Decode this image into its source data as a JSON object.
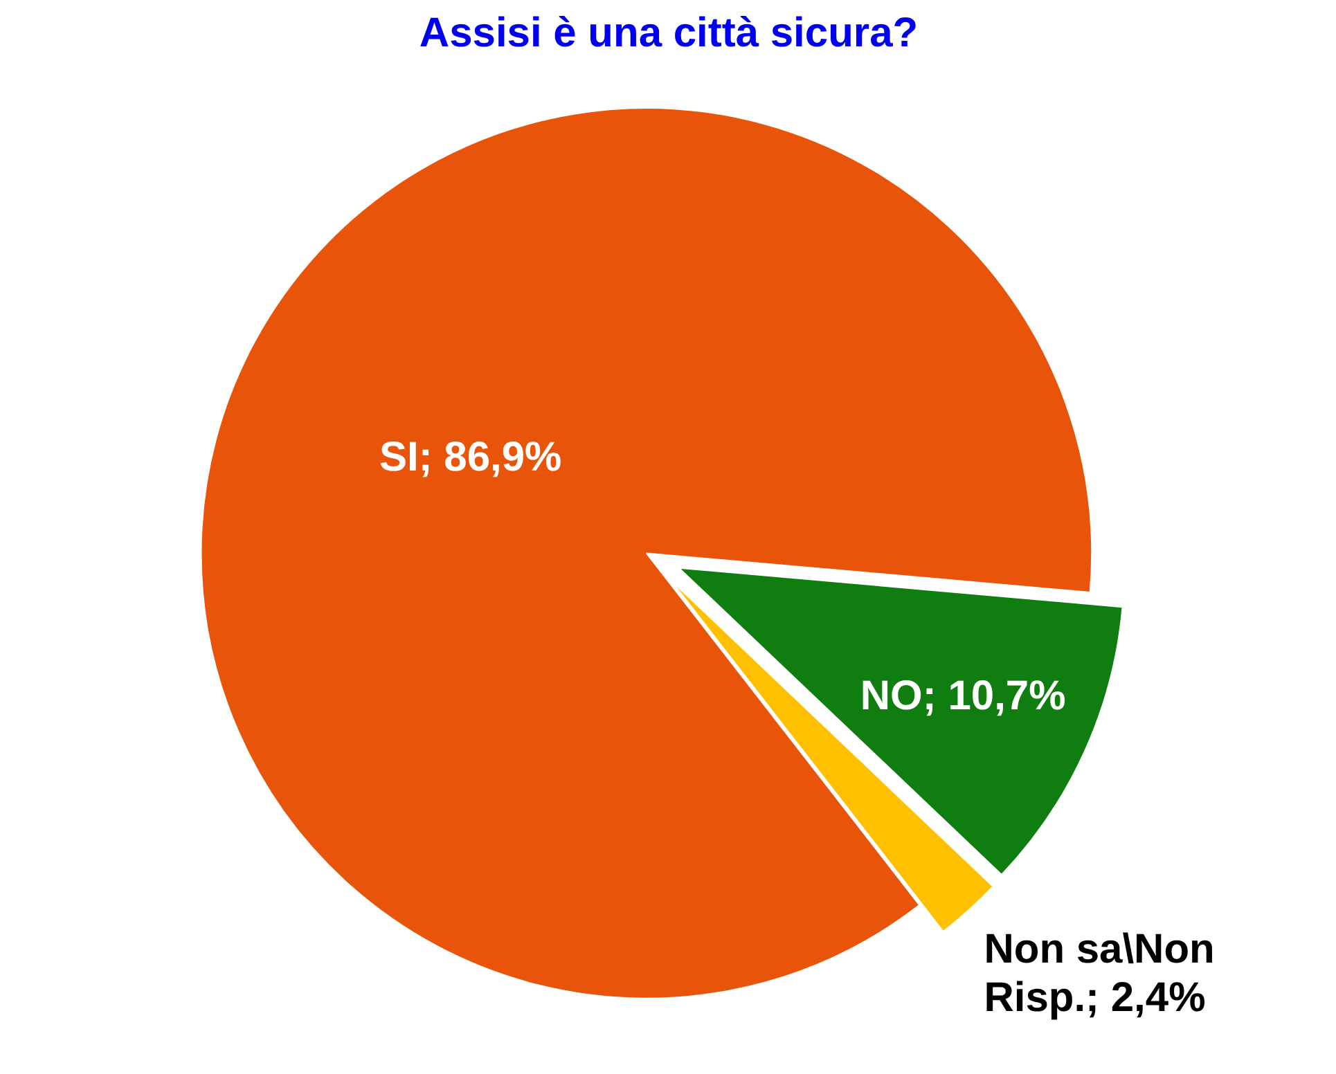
{
  "chart_data": {
    "type": "pie",
    "title": "Assisi è una città sicura?",
    "categories": [
      "SI",
      "NO",
      "Non sa\\Non Risp."
    ],
    "values": [
      86.9,
      10.7,
      2.4
    ],
    "colors": [
      "#e8550a",
      "#0f7d0f",
      "#ffc000"
    ],
    "value_labels": [
      "86,9%",
      "10,7%",
      "2,4%"
    ]
  }
}
